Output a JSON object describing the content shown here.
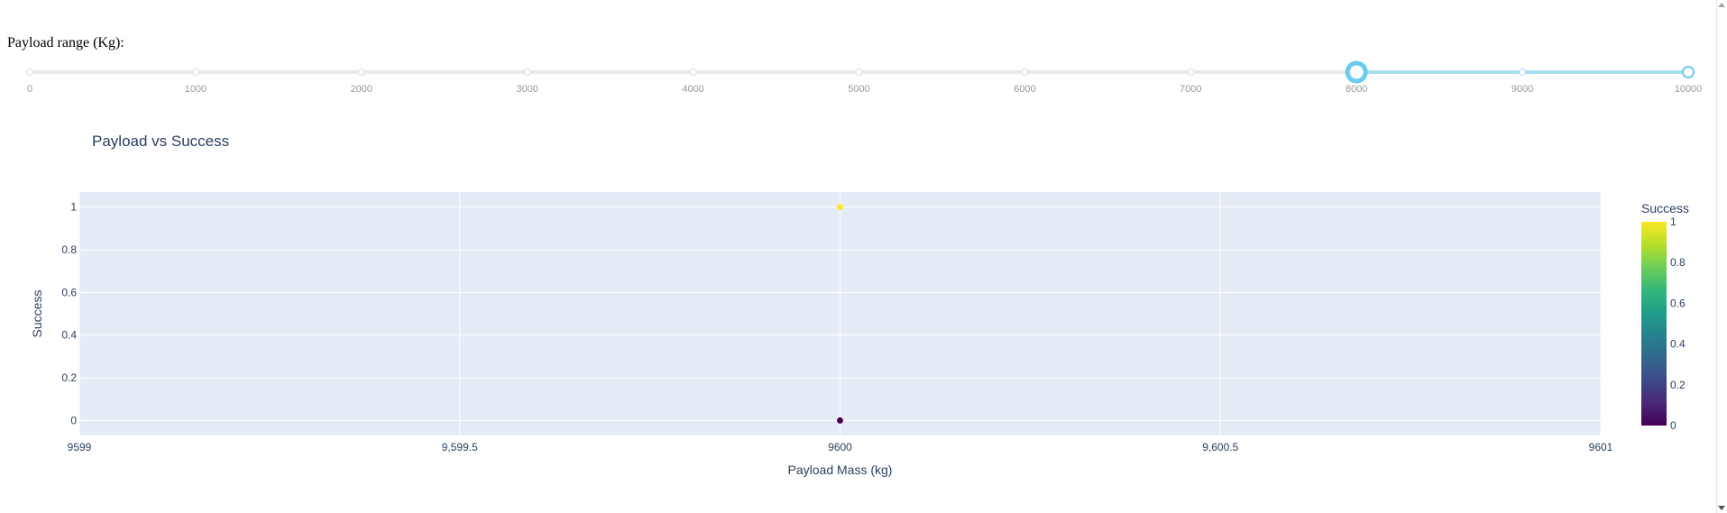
{
  "slider": {
    "label": "Payload range (Kg):",
    "min": 0,
    "max": 10000,
    "marks": [
      "0",
      "1000",
      "2000",
      "3000",
      "4000",
      "5000",
      "6000",
      "7000",
      "8000",
      "9000",
      "10000"
    ],
    "mark_values": [
      0,
      1000,
      2000,
      3000,
      4000,
      5000,
      6000,
      7000,
      8000,
      9000,
      10000
    ],
    "selected_range": [
      8000,
      10000
    ],
    "track_color": "#e9e9e9",
    "active_color": "#a7dfee",
    "handle_color": "#6ccbf0"
  },
  "chart_data": {
    "type": "scatter",
    "title": "Payload vs Success",
    "xlabel": "Payload Mass (kg)",
    "ylabel": "Success",
    "xlim": [
      9599,
      9601
    ],
    "ylim": [
      -0.07,
      1.07
    ],
    "x_ticks": [
      9599,
      9599.5,
      9600,
      9600.5,
      9601
    ],
    "x_tick_labels": [
      "9599",
      "9,599.5",
      "9600",
      "9,600.5",
      "9601"
    ],
    "y_ticks": [
      0,
      0.2,
      0.4,
      0.6,
      0.8,
      1
    ],
    "y_tick_labels": [
      "0",
      "0.2",
      "0.4",
      "0.6",
      "0.8",
      "1"
    ],
    "points": [
      {
        "x": 9600,
        "y": 1,
        "color_value": 1
      },
      {
        "x": 9600,
        "y": 0,
        "color_value": 0
      }
    ],
    "grid": true,
    "plot_bgcolor": "#e5ecf6",
    "colorbar": {
      "title": "Success",
      "colorscale": "Viridis",
      "range": [
        0,
        1
      ],
      "ticks": [
        0,
        0.2,
        0.4,
        0.6,
        0.8,
        1
      ],
      "tick_labels": [
        "0",
        "0.2",
        "0.4",
        "0.6",
        "0.8",
        "1"
      ]
    }
  }
}
